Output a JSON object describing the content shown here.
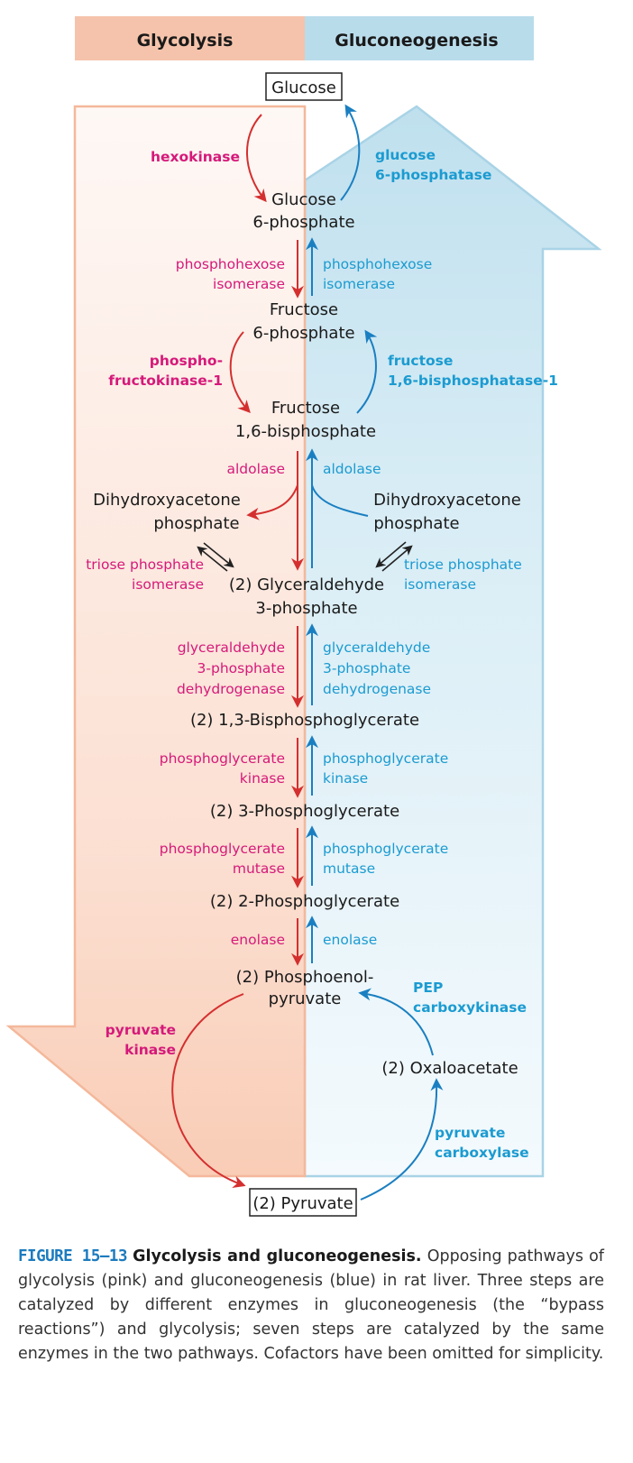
{
  "headers": {
    "left": "Glycolysis",
    "right": "Gluconeogenesis"
  },
  "colors": {
    "glycolysis": "#d6197a",
    "gluconeogenesis": "#1b9bd1",
    "arrow_red": "#d42f2f",
    "arrow_blue": "#1a7fc1"
  },
  "metabolites": {
    "glucose": "Glucose",
    "g6p_1": "Glucose",
    "g6p_2": "6-phosphate",
    "f6p_1": "Fructose",
    "f6p_2": "6-phosphate",
    "f16bp_1": "Fructose",
    "f16bp_2": "1,6-bisphosphate",
    "dhap_l_1": "Dihydroxyacetone",
    "dhap_l_2": "phosphate",
    "dhap_r_1": "Dihydroxyacetone",
    "dhap_r_2": "phosphate",
    "g3p_1": "(2) Glyceraldehyde",
    "g3p_2": "3-phosphate",
    "bpg": "(2) 1,3-Bisphosphoglycerate",
    "pg3": "(2) 3-Phosphoglycerate",
    "pg2": "(2) 2-Phosphoglycerate",
    "pep_1": "(2) Phosphoenol-",
    "pep_2": "pyruvate",
    "oaa": "(2) Oxaloacetate",
    "pyruvate": "(2) Pyruvate"
  },
  "enzymes_glycolysis": {
    "hexokinase": "hexokinase",
    "phi_1": "phosphohexose",
    "phi_2": "isomerase",
    "pfk_1": "phospho-",
    "pfk_2": "fructokinase-1",
    "aldolase": "aldolase",
    "tpi_1": "triose phosphate",
    "tpi_2": "isomerase",
    "gapdh_1": "glyceraldehyde",
    "gapdh_2": "3-phosphate",
    "gapdh_3": "dehydrogenase",
    "pgk_1": "phosphoglycerate",
    "pgk_2": "kinase",
    "pgm_1": "phosphoglycerate",
    "pgm_2": "mutase",
    "enolase": "enolase",
    "pk_1": "pyruvate",
    "pk_2": "kinase"
  },
  "enzymes_gluconeogenesis": {
    "g6pase_1": "glucose",
    "g6pase_2": "6-phosphatase",
    "phi_1": "phosphohexose",
    "phi_2": "isomerase",
    "fbpase_1": "fructose",
    "fbpase_2": "1,6-bisphosphatase-1",
    "aldolase": "aldolase",
    "tpi_1": "triose phosphate",
    "tpi_2": "isomerase",
    "gapdh_1": "glyceraldehyde",
    "gapdh_2": "3-phosphate",
    "gapdh_3": "dehydrogenase",
    "pgk_1": "phosphoglycerate",
    "pgk_2": "kinase",
    "pgm_1": "phosphoglycerate",
    "pgm_2": "mutase",
    "enolase": "enolase",
    "pepck_1": "PEP",
    "pepck_2": "carboxykinase",
    "pc_1": "pyruvate",
    "pc_2": "carboxylase"
  },
  "caption": {
    "number": "FIGURE 15–13",
    "title": "Glycolysis and gluconeogenesis.",
    "text": "Opposing pathways of glycolysis (pink) and gluconeogenesis (blue) in rat liver. Three steps are catalyzed by different enzymes in gluconeogenesis (the “bypass reactions”) and glycolysis; seven steps are catalyzed by the same enzymes in the two pathways. Cofactors have been omitted for simplicity."
  }
}
